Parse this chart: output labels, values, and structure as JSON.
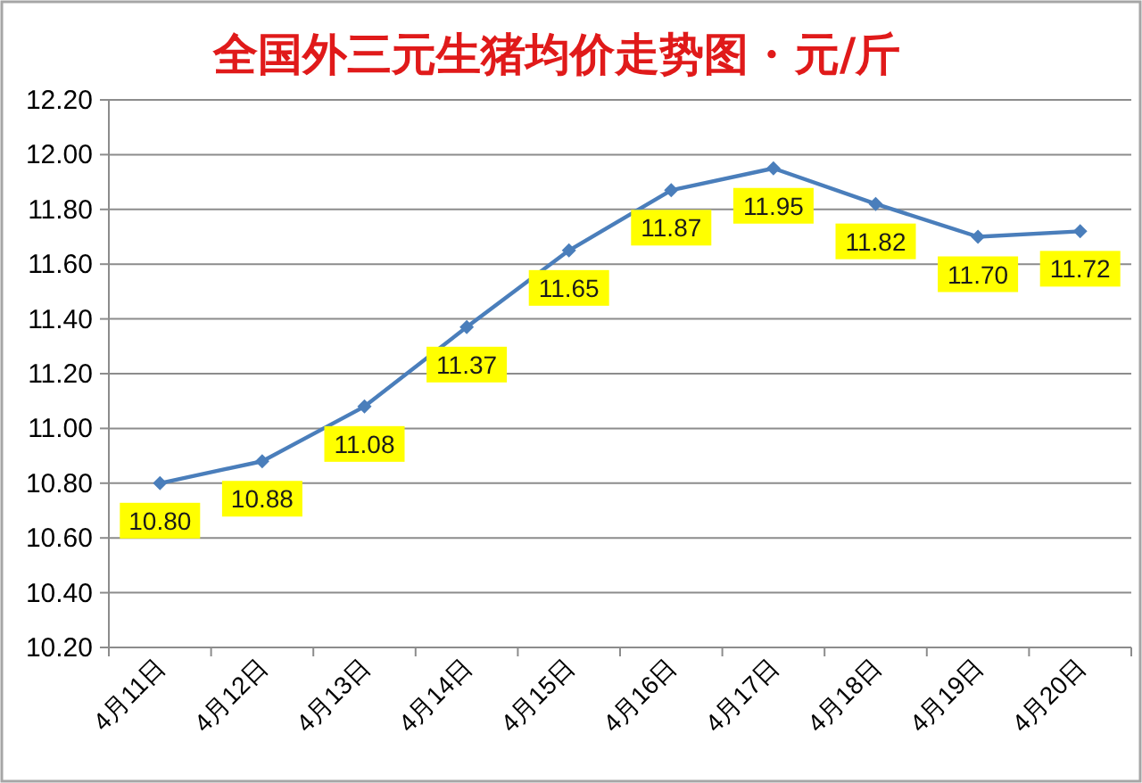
{
  "chart_data": {
    "type": "line",
    "title": "全国外三元生猪均价走势图 · 元/斤",
    "categories": [
      "4月11日",
      "4月12日",
      "4月13日",
      "4月14日",
      "4月15日",
      "4月16日",
      "4月17日",
      "4月18日",
      "4月19日",
      "4月20日"
    ],
    "values": [
      10.8,
      10.88,
      11.08,
      11.37,
      11.65,
      11.87,
      11.95,
      11.82,
      11.7,
      11.72
    ],
    "value_labels": [
      "10.80",
      "10.88",
      "11.08",
      "11.37",
      "11.65",
      "11.87",
      "11.95",
      "11.82",
      "11.70",
      "11.72"
    ],
    "color": "#4a7ebb",
    "ylim": [
      10.2,
      12.2
    ],
    "yticks": [
      {
        "value": 10.2,
        "label": "10.20"
      },
      {
        "value": 10.4,
        "label": "10.40"
      },
      {
        "value": 10.6,
        "label": "10.60"
      },
      {
        "value": 10.8,
        "label": "10.80"
      },
      {
        "value": 11.0,
        "label": "11.00"
      },
      {
        "value": 11.2,
        "label": "11.20"
      },
      {
        "value": 11.4,
        "label": "11.40"
      },
      {
        "value": 11.6,
        "label": "11.60"
      },
      {
        "value": 11.8,
        "label": "11.80"
      },
      {
        "value": 12.0,
        "label": "12.00"
      },
      {
        "value": 12.2,
        "label": "12.20"
      }
    ],
    "grid": "y",
    "marker": "diamond",
    "line_style": "solid"
  }
}
